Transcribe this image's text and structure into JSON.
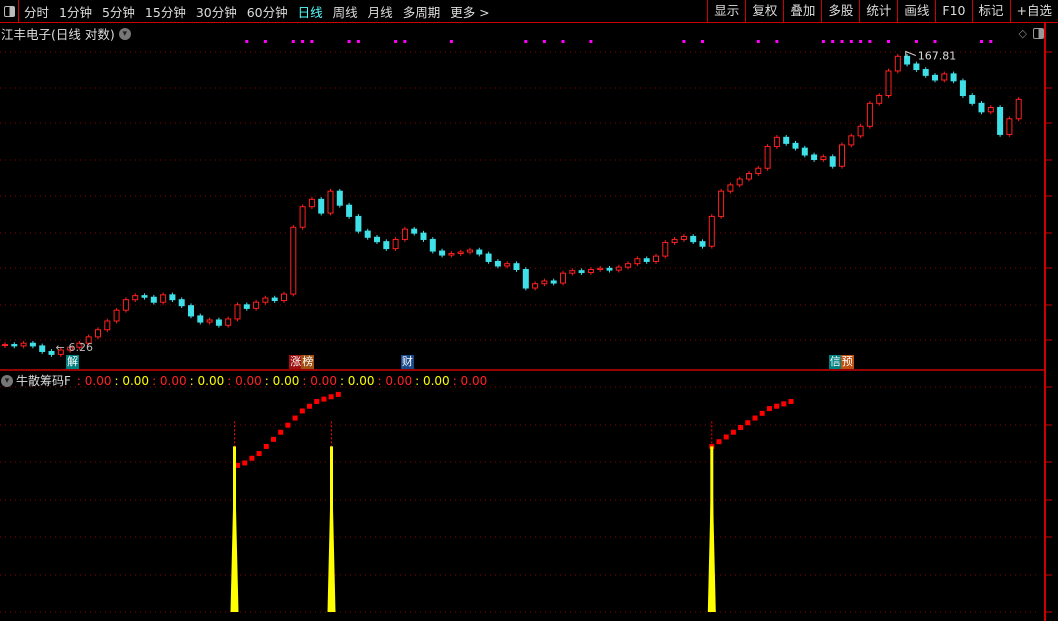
{
  "toolbar": {
    "periods": [
      "分时",
      "1分钟",
      "5分钟",
      "15分钟",
      "30分钟",
      "60分钟",
      "日线",
      "周线",
      "月线",
      "多周期",
      "更多 >"
    ],
    "active_period": "日线",
    "right_buttons": [
      "显示",
      "复权",
      "叠加",
      "多股",
      "统计",
      "画线",
      "F10",
      "标记",
      "+自选"
    ]
  },
  "chart": {
    "title": "江丰电子(日线 对数)",
    "scale": "log",
    "high_label": "167.81",
    "low_label": "6.26",
    "colors": {
      "up": "#ff2020",
      "down": "#40e0e8",
      "marker": "#ff00ff",
      "grid": "#8a0000"
    },
    "closes": [
      7.0,
      6.9,
      7.1,
      6.9,
      6.5,
      6.3,
      6.6,
      6.8,
      7.1,
      7.6,
      8.2,
      9.0,
      10.1,
      11.3,
      11.8,
      11.6,
      11.0,
      11.9,
      11.3,
      10.6,
      9.5,
      8.9,
      9.1,
      8.6,
      9.2,
      10.7,
      10.3,
      11.0,
      11.5,
      11.2,
      12.0,
      24.5,
      30.5,
      33.0,
      28.5,
      36.0,
      31.0,
      27.5,
      23.5,
      22.0,
      21.0,
      19.5,
      21.5,
      24.0,
      23.0,
      21.5,
      19.0,
      18.2,
      18.5,
      18.8,
      19.2,
      18.4,
      17.0,
      16.2,
      16.6,
      15.6,
      12.8,
      13.4,
      13.8,
      13.5,
      15.0,
      15.4,
      15.1,
      15.6,
      15.8,
      15.5,
      16.0,
      16.6,
      17.5,
      17.0,
      18.0,
      20.8,
      21.5,
      22.2,
      21.0,
      20.0,
      27.5,
      36.0,
      38.5,
      41.0,
      43.5,
      46.0,
      58.0,
      64.0,
      60.0,
      57.0,
      53.0,
      50.5,
      52.0,
      47.0,
      59.0,
      65.0,
      72.0,
      92.0,
      100.0,
      130.0,
      152.0,
      140.0,
      132.0,
      124.0,
      118.0,
      126.0,
      117.0,
      100.0,
      92.0,
      84.0,
      88.0,
      66.0,
      78.0,
      96.0
    ],
    "marker_indices": [
      26,
      28,
      31,
      32,
      33,
      37,
      38,
      42,
      43,
      48,
      56,
      58,
      60,
      63,
      73,
      75,
      81,
      83,
      88,
      89,
      90,
      91,
      92,
      93,
      95,
      98,
      100,
      105,
      106
    ],
    "event_tags": [
      {
        "index": 7,
        "labels": [
          "解"
        ],
        "colors": [
          "#008080"
        ]
      },
      {
        "index": 31,
        "labels": [
          "涨",
          "榜"
        ],
        "colors": [
          "#a01010",
          "#a05010"
        ]
      },
      {
        "index": 43,
        "labels": [
          "财"
        ],
        "colors": [
          "#1a4a8a"
        ]
      },
      {
        "index": 89,
        "labels": [
          "信",
          "预"
        ],
        "colors": [
          "#008080",
          "#c05010"
        ]
      }
    ]
  },
  "indicator": {
    "name": "牛散筹码F",
    "values": [
      "0.00",
      "0.00",
      "0.00",
      "0.00",
      "0.00",
      "0.00",
      "0.00",
      "0.00",
      "0.00",
      "0.00",
      "0.00"
    ],
    "value_colors": [
      "red",
      "yel",
      "red",
      "yel",
      "red",
      "yel",
      "red",
      "yel",
      "red",
      "yel",
      "red"
    ],
    "curve_segments": [
      {
        "start_index": 25,
        "values": [
          62,
          63,
          65,
          67,
          70,
          73,
          76,
          79,
          82,
          85,
          87,
          89,
          90,
          91,
          92
        ]
      },
      {
        "start_index": 76,
        "values": [
          70,
          72,
          74,
          76,
          78,
          80,
          82,
          84,
          86,
          87,
          88,
          89
        ]
      }
    ],
    "spike_indices": [
      25,
      35,
      76
    ],
    "spike_level": 70
  }
}
